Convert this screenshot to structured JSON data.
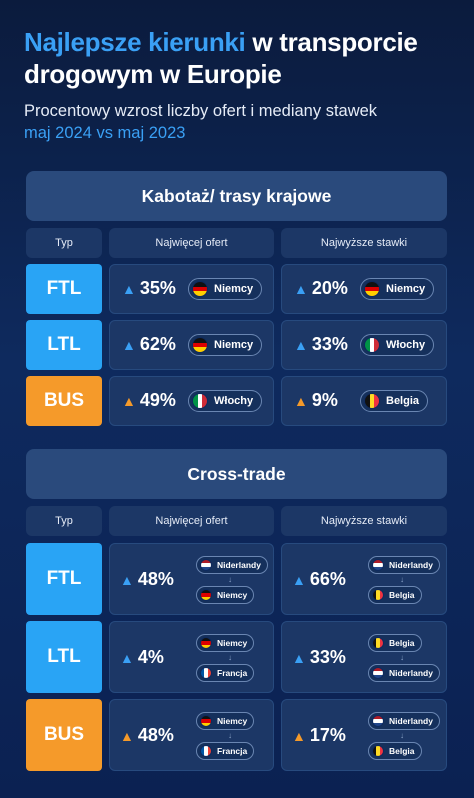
{
  "header": {
    "title_accent": "Najlepsze kierunki",
    "title_rest": " w transporcie drogowym w Europie",
    "subtitle": "Procentowy wzrost liczby ofert i mediany stawek",
    "subtitle_accent": "maj 2024 vs maj 2023"
  },
  "colors": {
    "blue": "#29a4f5",
    "orange": "#f59a2a",
    "accent": "#3aa0f5"
  },
  "domestic": {
    "title": "Kabotaż/ trasy krajowe",
    "col_type": "Typ",
    "col_offers": "Najwięcej ofert",
    "col_rates": "Najwyższe stawki",
    "rows": [
      {
        "type": "FTL",
        "offers_value": "35%",
        "offers_country": "Niemcy",
        "rates_value": "20%",
        "rates_country": "Niemcy"
      },
      {
        "type": "LTL",
        "offers_value": "62%",
        "offers_country": "Niemcy",
        "rates_value": "33%",
        "rates_country": "Włochy"
      },
      {
        "type": "BUS",
        "offers_value": "49%",
        "offers_country": "Włochy",
        "rates_value": "9%",
        "rates_country": "Belgia"
      }
    ]
  },
  "cross": {
    "title": "Cross-trade",
    "col_type": "Typ",
    "col_offers": "Najwięcej ofert",
    "col_rates": "Najwyższe stawki",
    "rows": [
      {
        "type": "FTL",
        "offers_value": "48%",
        "offers_from": "Niderlandy",
        "offers_to": "Niemcy",
        "rates_value": "66%",
        "rates_from": "Niderlandy",
        "rates_to": "Belgia"
      },
      {
        "type": "LTL",
        "offers_value": "4%",
        "offers_from": "Niemcy",
        "offers_to": "Francja",
        "rates_value": "33%",
        "rates_from": "Belgia",
        "rates_to": "Niderlandy"
      },
      {
        "type": "BUS",
        "offers_value": "48%",
        "offers_from": "Niemcy",
        "offers_to": "Francja",
        "rates_value": "17%",
        "rates_from": "Niderlandy",
        "rates_to": "Belgia"
      }
    ]
  }
}
